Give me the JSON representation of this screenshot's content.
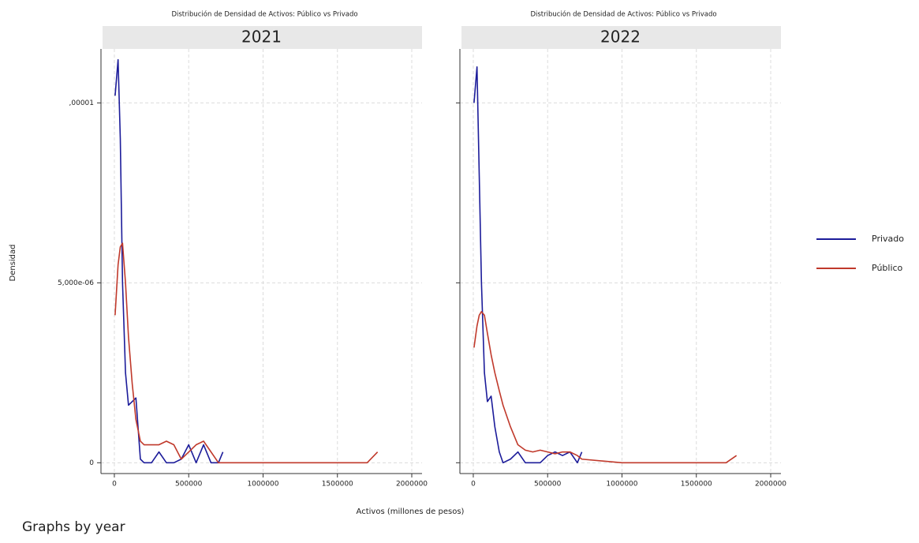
{
  "chart_data": {
    "type": "line",
    "ylabel": "Densidad",
    "xlabel": "Activos (millones de pesos)",
    "note": "Graphs by year",
    "legend": [
      {
        "name": "Privado",
        "color": "#1c1c9a"
      },
      {
        "name": "Público",
        "color": "#c0392b"
      }
    ],
    "xlim": [
      -90000,
      2069000
    ],
    "xticks": [
      0,
      500000,
      1000000,
      1500000,
      2000000
    ],
    "ylim": [
      -3e-07,
      1.15e-05
    ],
    "yticks": [
      0,
      {
        "value": 5e-06,
        "label": "5,000e-06"
      },
      {
        "value": 1e-05,
        "label": ",00001"
      }
    ],
    "grid": true,
    "panels": [
      {
        "title": "Distribución de Densidad de Activos: Público vs Privado",
        "strip": "2021",
        "x": [
          5000,
          25000,
          40000,
          55000,
          75000,
          95000,
          120000,
          145000,
          175000,
          200000,
          250000,
          300000,
          350000,
          400000,
          450000,
          500000,
          550000,
          600000,
          650000,
          700000,
          730000,
          1000000,
          1500000,
          1700000,
          1770000
        ],
        "series": [
          {
            "values": [
              1.02e-05,
              1.12e-05,
              9e-06,
              5e-06,
              2.5e-06,
              1.6e-06,
              1.7e-06,
              1.8e-06,
              1e-07,
              0,
              0,
              3e-07,
              0,
              0,
              1e-07,
              5e-07,
              0,
              5e-07,
              0,
              0,
              3e-07,
              null,
              null,
              null,
              null
            ]
          },
          {
            "values": [
              4.1e-06,
              5.5e-06,
              6e-06,
              6.1e-06,
              5e-06,
              3.5e-06,
              2.2e-06,
              1.2e-06,
              6e-07,
              5e-07,
              5e-07,
              5e-07,
              6e-07,
              5e-07,
              1e-07,
              3e-07,
              5e-07,
              6e-07,
              3e-07,
              0,
              0,
              0,
              0,
              0,
              3e-07
            ]
          }
        ]
      },
      {
        "title": "Distribución de Densidad de Activos: Público vs Privado",
        "strip": "2022",
        "x": [
          5000,
          25000,
          40000,
          55000,
          75000,
          95000,
          120000,
          145000,
          175000,
          200000,
          250000,
          300000,
          350000,
          400000,
          450000,
          500000,
          550000,
          600000,
          650000,
          700000,
          730000,
          1000000,
          1500000,
          1700000,
          1770000
        ],
        "series": [
          {
            "values": [
              1e-05,
              1.1e-05,
              8e-06,
              5e-06,
              2.5e-06,
              1.7e-06,
              1.85e-06,
              1e-06,
              3e-07,
              0,
              1e-07,
              3e-07,
              0,
              0,
              0,
              2e-07,
              3e-07,
              2e-07,
              3e-07,
              0,
              3e-07,
              null,
              null,
              null,
              null
            ]
          },
          {
            "values": [
              3.2e-06,
              3.8e-06,
              4.1e-06,
              4.2e-06,
              4.1e-06,
              3.6e-06,
              3e-06,
              2.5e-06,
              2e-06,
              1.6e-06,
              1e-06,
              5e-07,
              3.5e-07,
              3e-07,
              3.5e-07,
              3e-07,
              2.5e-07,
              3e-07,
              3e-07,
              2e-07,
              1e-07,
              0,
              0,
              0,
              2e-07
            ]
          }
        ]
      }
    ]
  }
}
